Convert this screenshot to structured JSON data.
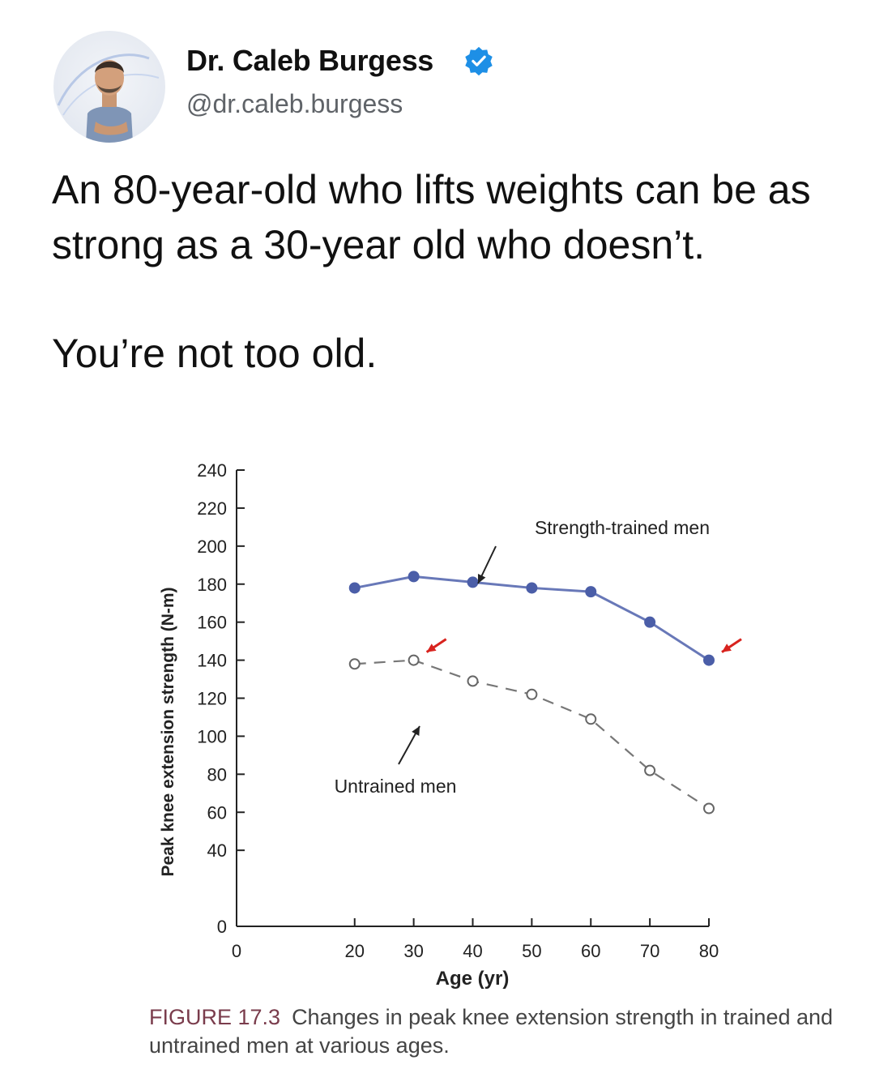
{
  "post": {
    "display_name": "Dr. Caleb Burgess",
    "handle": "@dr.caleb.burgess",
    "text_line1": "An 80-year-old who lifts weights can be as strong as a 30-year old who doesn’t.",
    "text_line2": "You’re not too old."
  },
  "icons": {
    "verified": "verified-badge-icon",
    "avatar": "profile-avatar"
  },
  "colors": {
    "trained_line": "#6878b8",
    "trained_marker": "#4b5ea8",
    "untrained_line": "#777777",
    "arrow_red": "#d8231e",
    "caption_label": "#7a3c4c"
  },
  "chart_data": {
    "type": "line",
    "xlabel": "Age (yr)",
    "ylabel": "Peak knee extension strength (N-m)",
    "xlim": [
      0,
      80
    ],
    "ylim": [
      0,
      240
    ],
    "x_ticks": [
      0,
      20,
      30,
      40,
      50,
      60,
      70,
      80
    ],
    "y_ticks": [
      0,
      40,
      60,
      80,
      100,
      120,
      140,
      160,
      180,
      200,
      220,
      240
    ],
    "x": [
      20,
      30,
      40,
      50,
      60,
      70,
      80
    ],
    "series": [
      {
        "name": "Strength-trained men",
        "values": [
          178,
          184,
          181,
          178,
          176,
          160,
          140
        ],
        "style": "solid",
        "marker": "filled-circle"
      },
      {
        "name": "Untrained men",
        "values": [
          138,
          140,
          129,
          122,
          109,
          82,
          62
        ],
        "style": "dashed",
        "marker": "open-circle"
      }
    ],
    "annotations": [
      {
        "type": "red-arrow",
        "target": "Untrained men",
        "x": 30
      },
      {
        "type": "red-arrow",
        "target": "Strength-trained men",
        "x": 80
      }
    ],
    "grid": false,
    "legend": "inline labels with arrows"
  },
  "caption": {
    "label": "FIGURE 17.3",
    "text": "Changes in peak knee extension strength in trained and untrained men at various ages."
  }
}
